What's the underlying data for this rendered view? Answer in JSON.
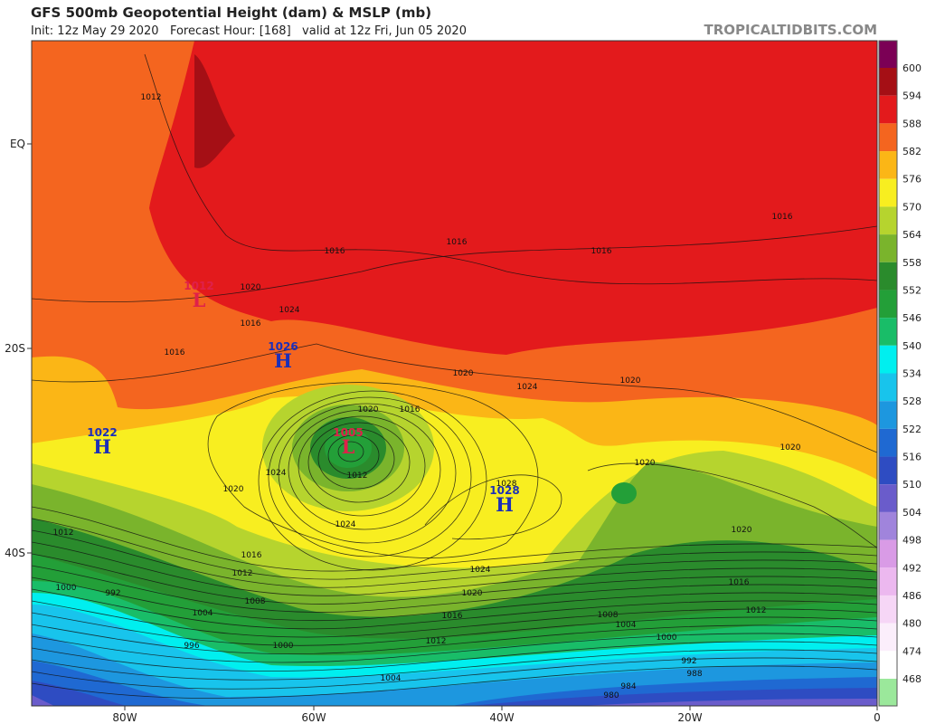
{
  "header": {
    "title": "GFS 500mb Geopotential Height (dam) & MSLP (mb)",
    "subtitle": "Init: 12z May 29 2020   Forecast Hour: [168]   valid at 12z Fri, Jun 05 2020",
    "watermark": "TROPICALTIDBITS.COM"
  },
  "legend": {
    "levels": [
      600,
      594,
      588,
      582,
      576,
      570,
      564,
      558,
      552,
      546,
      540,
      534,
      528,
      522,
      516,
      510,
      504,
      498,
      492,
      486,
      480,
      474,
      468
    ],
    "colors": [
      "#7b0055",
      "#a50f15",
      "#e31a1c",
      "#f4651f",
      "#fbb616",
      "#f8ee20",
      "#b6d42e",
      "#7ab42c",
      "#2a8b2c",
      "#239f38",
      "#19bd68",
      "#00efef",
      "#18c4ec",
      "#1d97df",
      "#1f69d2",
      "#2e4cc2",
      "#6a5ccb",
      "#a084dc",
      "#d99be6",
      "#ecb8ef",
      "#f6d6f6",
      "#fbeefb",
      "#ffffff",
      "#9be89b"
    ]
  },
  "axes": {
    "lat_labels": [
      "EQ",
      "20S",
      "40S"
    ],
    "lon_labels": [
      "80W",
      "60W",
      "40W",
      "20W",
      "0"
    ]
  },
  "centers": [
    {
      "symbol": "H",
      "pressure": "1022"
    },
    {
      "symbol": "H",
      "pressure": "1026"
    },
    {
      "symbol": "L",
      "pressure": "1012"
    },
    {
      "symbol": "L",
      "pressure": "1005"
    },
    {
      "symbol": "H",
      "pressure": "1028"
    }
  ],
  "isobar_labels": [
    "1012",
    "1016",
    "1016",
    "1016",
    "1016",
    "1020",
    "1024",
    "1016",
    "1016",
    "1020",
    "1020",
    "1024",
    "1020",
    "1016",
    "1020",
    "1020",
    "1024",
    "1012",
    "1028",
    "1020",
    "1024",
    "1020",
    "1012",
    "1016",
    "1012",
    "1024",
    "1016",
    "1020",
    "1000",
    "992",
    "1008",
    "1012",
    "1016",
    "1004",
    "1008",
    "1004",
    "1012",
    "1000",
    "1000",
    "996",
    "992",
    "988",
    "1004",
    "984",
    "980"
  ]
}
